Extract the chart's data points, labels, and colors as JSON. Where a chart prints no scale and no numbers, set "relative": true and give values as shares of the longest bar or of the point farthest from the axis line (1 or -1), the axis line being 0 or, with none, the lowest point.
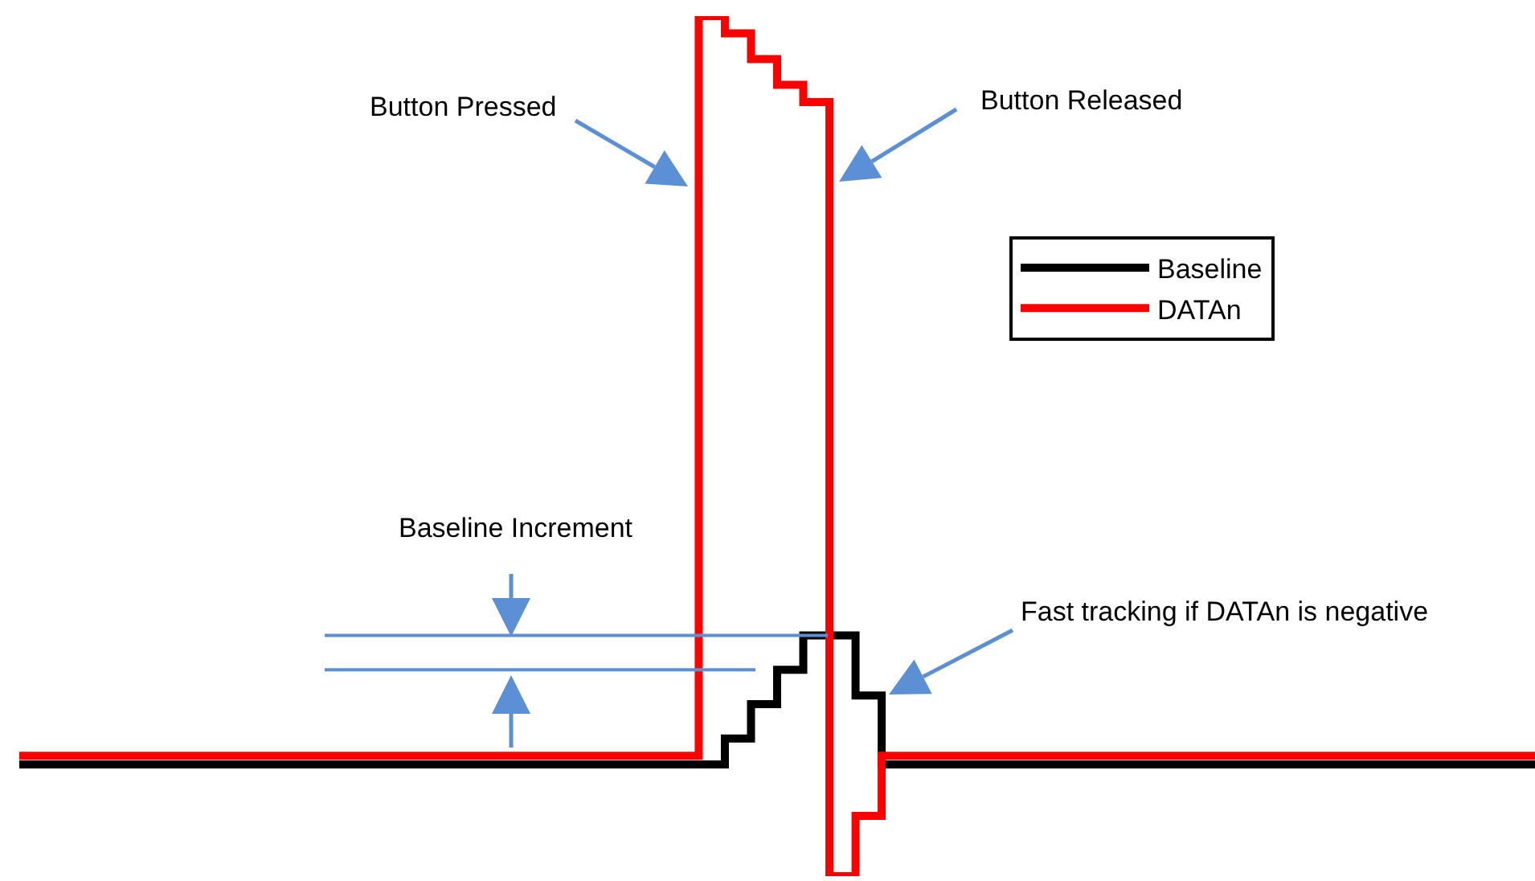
{
  "chart_data": {
    "type": "step",
    "relative": true,
    "categories": [
      null,
      null,
      null,
      null,
      null,
      null,
      null,
      null,
      null,
      null,
      null,
      null,
      null,
      null,
      null,
      null,
      null,
      null,
      null,
      null,
      null,
      null,
      null,
      null,
      null,
      null,
      null,
      null,
      null,
      null,
      null,
      null,
      null,
      null,
      null,
      null,
      null,
      null,
      null,
      null,
      null,
      null,
      null,
      null,
      null,
      null,
      null,
      null,
      null,
      null,
      null,
      null,
      null,
      null,
      null,
      null,
      null,
      null,
      null
    ],
    "series": [
      {
        "name": "Baseline",
        "color": "#000000",
        "values": [
          0.13,
          0.13,
          0.13,
          0.13,
          0.13,
          0.13,
          0.13,
          0.13,
          0.13,
          0.13,
          0.13,
          0.13,
          0.13,
          0.13,
          0.13,
          0.13,
          0.13,
          0.13,
          0.13,
          0.13,
          0.13,
          0.13,
          0.13,
          0.13,
          0.13,
          0.13,
          0.13,
          0.16,
          0.2,
          0.24,
          0.28,
          0.28,
          0.21,
          0.13,
          0.13,
          0.13,
          0.13,
          0.13,
          0.13,
          0.13,
          0.13,
          0.13,
          0.13,
          0.13,
          0.13,
          0.13,
          0.13,
          0.13,
          0.13,
          0.13,
          0.13,
          0.13,
          0.13,
          0.13,
          0.13,
          0.13,
          0.13,
          0.13,
          0.13
        ]
      },
      {
        "name": "DATAn",
        "color": "#ff0000",
        "values": [
          0.14,
          0.14,
          0.14,
          0.14,
          0.14,
          0.14,
          0.14,
          0.14,
          0.14,
          0.14,
          0.14,
          0.14,
          0.14,
          0.14,
          0.14,
          0.14,
          0.14,
          0.14,
          0.14,
          0.14,
          0.14,
          0.14,
          0.14,
          0.14,
          0.14,
          0.14,
          1,
          0.98,
          0.95,
          0.92,
          0.9,
          0,
          0.07,
          0.14,
          0.14,
          0.14,
          0.14,
          0.14,
          0.14,
          0.14,
          0.14,
          0.14,
          0.14,
          0.14,
          0.14,
          0.14,
          0.14,
          0.14,
          0.14,
          0.14,
          0.14,
          0.14,
          0.14,
          0.14,
          0.14,
          0.14,
          0.14,
          0.14,
          0.14
        ]
      }
    ],
    "ref_lines": [
      {
        "axis": "y",
        "value": 0.28,
        "label": null,
        "color": "#5b8fd6"
      },
      {
        "axis": "y",
        "value": 0.24,
        "label": null,
        "color": "#5b8fd6"
      }
    ],
    "annotations": [
      "Button Pressed",
      "Button Released",
      "Baseline Increment",
      "Fast tracking if DATAn is negative"
    ],
    "legend": "top right",
    "grid": false,
    "marker": "none",
    "line_style": "solid"
  }
}
